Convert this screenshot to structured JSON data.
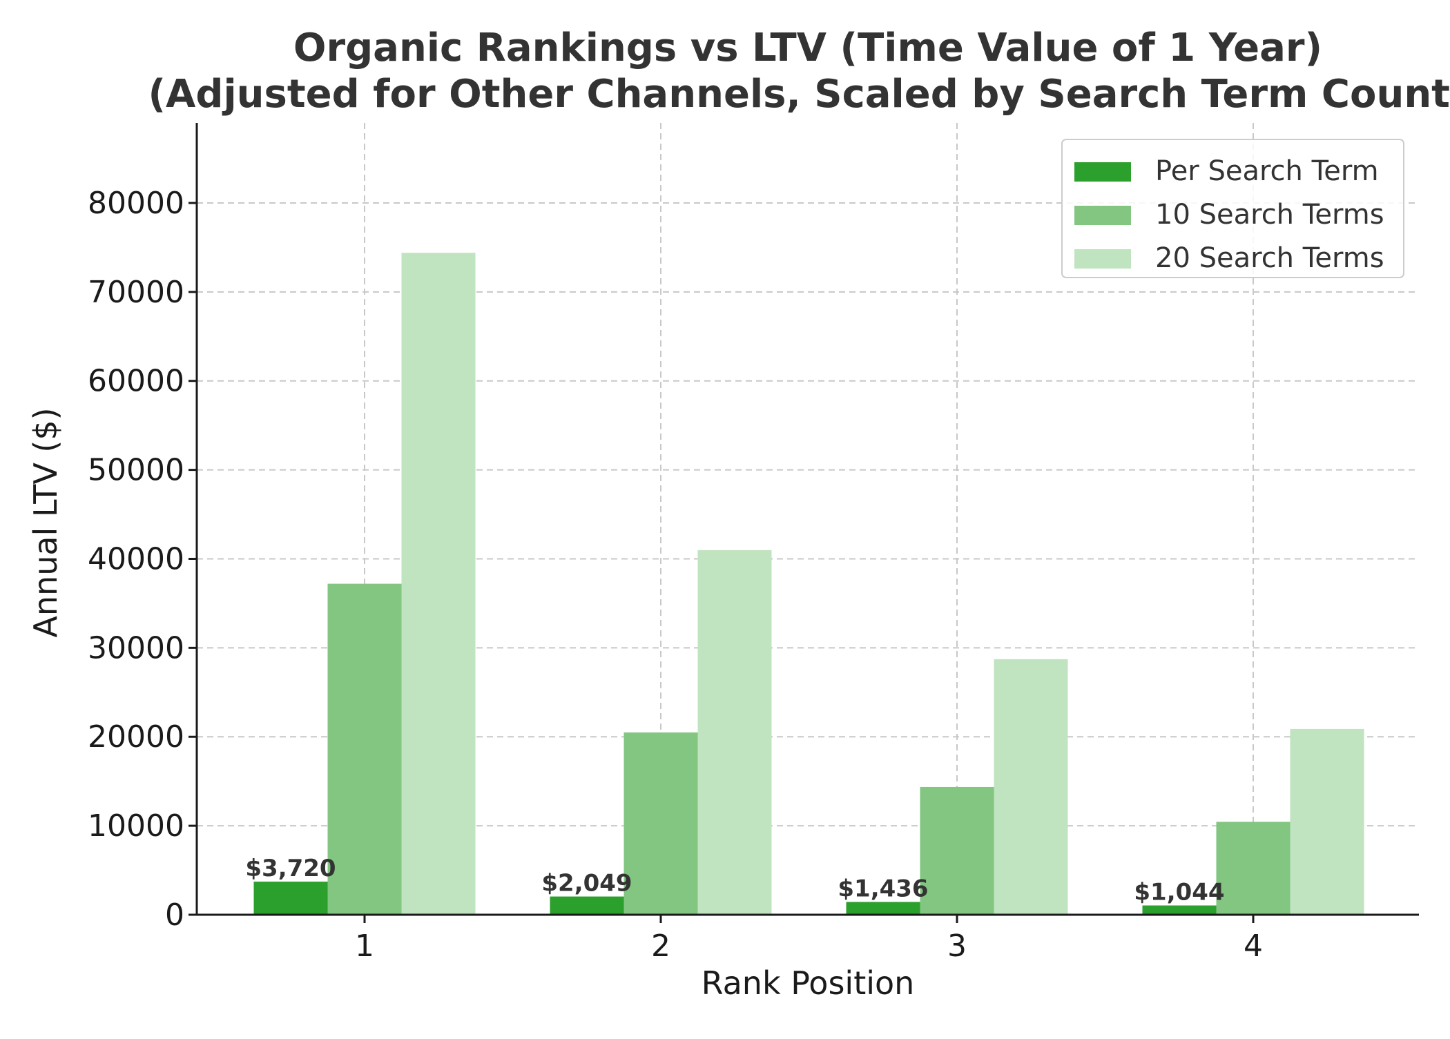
{
  "chart_data": {
    "type": "bar",
    "title_lines": [
      "Organic Rankings vs LTV (Time Value of 1 Year)",
      "(Adjusted for Other Channels, Scaled by Search Term Count)"
    ],
    "xlabel": "Rank Position",
    "ylabel": "Annual LTV ($)",
    "categories": [
      "1",
      "2",
      "3",
      "4"
    ],
    "ylim": [
      0,
      89000
    ],
    "yticks": [
      0,
      10000,
      20000,
      30000,
      40000,
      50000,
      60000,
      70000,
      80000
    ],
    "ytick_labels": [
      "0",
      "10000",
      "20000",
      "30000",
      "40000",
      "50000",
      "60000",
      "70000",
      "80000"
    ],
    "grid": true,
    "legend_position": "top-right",
    "series": [
      {
        "name": "Per Search Term",
        "color": "#2ca02c",
        "values": [
          3720,
          2049,
          1436,
          1044
        ]
      },
      {
        "name": "10 Search Terms",
        "color": "#82c682",
        "values": [
          37200,
          20490,
          14360,
          10440
        ]
      },
      {
        "name": "20 Search Terms",
        "color": "#c0e3c0",
        "values": [
          74400,
          40980,
          28720,
          20880
        ]
      }
    ],
    "data_labels": [
      "$3,720",
      "$2,049",
      "$1,436",
      "$1,044"
    ]
  }
}
